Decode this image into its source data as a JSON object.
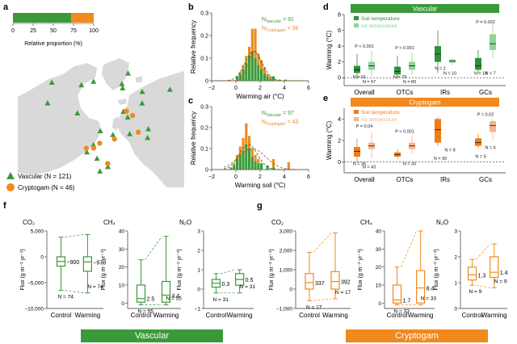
{
  "colors": {
    "vascular": "#3a9a3a",
    "vascular_light": "#8fd08f",
    "cryptogam": "#f08a1c",
    "cryptogam_light": "#f6b98a",
    "soil_vasc": "#2f8f3a",
    "air_vasc": "#8fd396",
    "soil_cryp": "#ef7d16",
    "air_cryp": "#f2b48d"
  },
  "panel_labels": {
    "a": "a",
    "b": "b",
    "c": "c",
    "d": "d",
    "e": "e",
    "f": "f",
    "g": "g"
  },
  "chart_data": [
    {
      "id": "a",
      "type": "bar",
      "title": "",
      "xlabel": "Relative proportion (%)",
      "ticks": [
        "0",
        "25",
        "50",
        "75",
        "100"
      ],
      "xlim": [
        0,
        100
      ],
      "segments": [
        {
          "name": "Vascular",
          "value": 72
        },
        {
          "name": "Cryptogam",
          "value": 28
        }
      ],
      "legend": [
        {
          "name": "Vascular",
          "label": "Vascular (N = 121)",
          "marker": "triangle"
        },
        {
          "name": "Cryptogam",
          "label": "Cryptogam (N = 46)",
          "marker": "circle"
        }
      ],
      "map_sites": [
        {
          "type": "v",
          "lon": -150,
          "lat": 68
        },
        {
          "type": "v",
          "lon": -145,
          "lat": 70
        },
        {
          "type": "v",
          "lon": -120,
          "lat": 62
        },
        {
          "type": "v",
          "lon": -105,
          "lat": 65
        },
        {
          "type": "v",
          "lon": -95,
          "lat": 78
        },
        {
          "type": "v",
          "lon": -80,
          "lat": 75
        },
        {
          "type": "v",
          "lon": -70,
          "lat": 60
        },
        {
          "type": "v",
          "lon": -60,
          "lat": 58
        },
        {
          "type": "v",
          "lon": -50,
          "lat": 69
        },
        {
          "type": "v",
          "lon": -20,
          "lat": 75
        },
        {
          "type": "v",
          "lon": 15,
          "lat": 78
        },
        {
          "type": "v",
          "lon": 20,
          "lat": 68
        },
        {
          "type": "v",
          "lon": 10,
          "lat": 60
        },
        {
          "type": "v",
          "lon": 5,
          "lat": 52
        },
        {
          "type": "v",
          "lon": -3,
          "lat": 55
        },
        {
          "type": "v",
          "lon": 25,
          "lat": 62
        },
        {
          "type": "v",
          "lon": 90,
          "lat": 72
        },
        {
          "type": "v",
          "lon": 140,
          "lat": 66
        },
        {
          "type": "v",
          "lon": 160,
          "lat": 68
        },
        {
          "type": "v",
          "lon": 100,
          "lat": 52
        },
        {
          "type": "v",
          "lon": 120,
          "lat": 50
        },
        {
          "type": "v",
          "lon": -110,
          "lat": 45
        },
        {
          "type": "v",
          "lon": -150,
          "lat": 60
        },
        {
          "type": "c",
          "lon": -95,
          "lat": 76
        },
        {
          "type": "c",
          "lon": -85,
          "lat": 72
        },
        {
          "type": "c",
          "lon": -20,
          "lat": 72
        },
        {
          "type": "c",
          "lon": 18,
          "lat": 66
        },
        {
          "type": "c",
          "lon": 10,
          "lat": 70
        },
        {
          "type": "c",
          "lon": -3,
          "lat": 57
        },
        {
          "type": "c",
          "lon": 28,
          "lat": 64
        },
        {
          "type": "c",
          "lon": -60,
          "lat": 65
        }
      ]
    },
    {
      "id": "b",
      "type": "histogram",
      "xlabel": "Warming air (°C)",
      "ylabel": "Relative frequency",
      "xlim": [
        -2,
        6
      ],
      "ylim": [
        0,
        0.3
      ],
      "xticks": [
        -2,
        0,
        2,
        4,
        6
      ],
      "yticks": [
        0,
        0.1,
        0.2,
        0.3
      ],
      "bin_width": 0.25,
      "bin_starts": [
        0,
        0.25,
        0.5,
        0.75,
        1.0,
        1.25,
        1.5,
        1.75,
        2.0,
        2.25,
        2.5,
        2.75,
        3.0,
        3.5,
        4.0
      ],
      "series": [
        {
          "name": "Vascular",
          "values": [
            0.02,
            0.03,
            0.05,
            0.08,
            0.11,
            0.13,
            0.1,
            0.07,
            0.05,
            0.03,
            0.02,
            0.01,
            0.02,
            0.005,
            0.005
          ]
        },
        {
          "name": "Cryptogam",
          "values": [
            0.0,
            0.01,
            0.02,
            0.03,
            0.04,
            0.1,
            0.13,
            0.05,
            0.04,
            0.03,
            0.01,
            0.01,
            0.0,
            0.0,
            0.0
          ]
        }
      ],
      "n_labels": [
        {
          "main": "N",
          "sub": "Vascular",
          "value": " = 91"
        },
        {
          "main": "N",
          "sub": "Cryptogam",
          "value": " = 36"
        }
      ]
    },
    {
      "id": "c",
      "type": "histogram",
      "xlabel": "Warming soil (°C)",
      "ylabel": "Relative frequency",
      "xlim": [
        -2,
        6
      ],
      "ylim": [
        0,
        0.3
      ],
      "xticks": [
        -2,
        0,
        2,
        4,
        6
      ],
      "yticks": [
        0,
        0.1,
        0.2,
        0.3
      ],
      "bin_width": 0.25,
      "bin_starts": [
        -0.5,
        -0.25,
        0,
        0.25,
        0.5,
        0.75,
        1.0,
        1.25,
        1.5,
        1.75,
        2.0,
        2.5,
        3.0,
        4.25
      ],
      "series": [
        {
          "name": "Vascular",
          "values": [
            0.01,
            0.02,
            0.05,
            0.07,
            0.09,
            0.12,
            0.1,
            0.06,
            0.04,
            0.03,
            0.03,
            0.02,
            0.01,
            0.005
          ]
        },
        {
          "name": "Cryptogam",
          "values": [
            0.0,
            0.01,
            0.02,
            0.04,
            0.06,
            0.1,
            0.06,
            0.04,
            0.03,
            0.02,
            0.0,
            0.0,
            0.04,
            0.03
          ]
        }
      ],
      "n_labels": [
        {
          "main": "N",
          "sub": "Vascular",
          "value": " = 97"
        },
        {
          "main": "N",
          "sub": "Cryptogam",
          "value": " = 43"
        }
      ]
    },
    {
      "id": "d",
      "type": "box",
      "title": "Vascular",
      "ylabel": "Warming (°C)",
      "ylim": [
        -1,
        8
      ],
      "yticks": [
        0,
        2,
        4,
        6,
        8
      ],
      "categories": [
        "Overall",
        "OTCs",
        "IRs",
        "GCs"
      ],
      "legend": [
        "Soil temperature",
        "Air temperature"
      ],
      "boxes": [
        {
          "cat": 0,
          "series": "soil",
          "min": -0.2,
          "q1": 0.6,
          "med": 1.0,
          "q3": 1.5,
          "max": 3.0
        },
        {
          "cat": 0,
          "series": "air",
          "min": 0.2,
          "q1": 1.0,
          "med": 1.5,
          "q3": 2.0,
          "max": 3.4
        },
        {
          "cat": 1,
          "series": "soil",
          "min": -0.2,
          "q1": 0.4,
          "med": 0.8,
          "q3": 1.4,
          "max": 2.8
        },
        {
          "cat": 1,
          "series": "air",
          "min": 0.4,
          "q1": 1.0,
          "med": 1.5,
          "q3": 2.0,
          "max": 3.2
        },
        {
          "cat": 2,
          "series": "soil",
          "min": 0.6,
          "q1": 2.0,
          "med": 3.0,
          "q3": 4.0,
          "max": 6.0
        },
        {
          "cat": 2,
          "series": "air",
          "min": 1.6,
          "q1": 1.9,
          "med": 2.1,
          "q3": 2.3,
          "max": 2.5
        },
        {
          "cat": 3,
          "series": "soil",
          "min": 0.5,
          "q1": 1.0,
          "med": 1.5,
          "q3": 2.5,
          "max": 3.5
        },
        {
          "cat": 3,
          "series": "air",
          "min": 2.5,
          "q1": 3.5,
          "med": 4.3,
          "q3": 5.5,
          "max": 6.8
        }
      ],
      "annotations": [
        {
          "text": "P < 0.001",
          "cat": 0,
          "y": 3.8
        },
        {
          "text": "P < 0.001",
          "cat": 1,
          "y": 3.6
        },
        {
          "text": "P = 0.002",
          "cat": 3,
          "y": 6.9
        },
        {
          "text": "N = 97",
          "cat": 0,
          "y": -0.7
        },
        {
          "text": "N = 91",
          "cat": 0,
          "y": -0.1
        },
        {
          "text": "N = 80",
          "cat": 1,
          "y": -0.7
        },
        {
          "text": "N = 79",
          "cat": 1,
          "y": -0.1
        },
        {
          "text": "N = 10",
          "cat": 2,
          "y": 0.4
        },
        {
          "text": "N = 2",
          "cat": 2,
          "y": 1.0
        },
        {
          "text": "N = 7",
          "cat": 3,
          "y": 0.4
        },
        {
          "text": "N = 10",
          "cat": 3,
          "y": 0.4
        }
      ]
    },
    {
      "id": "e",
      "type": "box",
      "title": "Cryptogam",
      "ylabel": "Warming (°C)",
      "ylim": [
        -1,
        5
      ],
      "yticks": [
        0,
        2,
        4
      ],
      "categories": [
        "Overall",
        "OTCs",
        "IRs",
        "GCs"
      ],
      "legend": [
        "Soil temperature",
        "Air temperature"
      ],
      "boxes": [
        {
          "cat": 0,
          "series": "soil",
          "min": 0.0,
          "q1": 0.5,
          "med": 1.0,
          "q3": 1.4,
          "max": 2.2
        },
        {
          "cat": 0,
          "series": "air",
          "min": 0.3,
          "q1": 1.2,
          "med": 1.5,
          "q3": 1.8,
          "max": 2.8
        },
        {
          "cat": 1,
          "series": "soil",
          "min": 0.3,
          "q1": 0.5,
          "med": 0.7,
          "q3": 0.9,
          "max": 1.2
        },
        {
          "cat": 1,
          "series": "air",
          "min": 0.8,
          "q1": 1.2,
          "med": 1.5,
          "q3": 1.8,
          "max": 2.5
        },
        {
          "cat": 2,
          "series": "soil",
          "min": 1.5,
          "q1": 1.8,
          "med": 3.0,
          "q3": 4.0,
          "max": 4.2
        },
        {
          "cat": 3,
          "series": "soil",
          "min": 1.3,
          "q1": 1.5,
          "med": 1.8,
          "q3": 2.2,
          "max": 2.6
        },
        {
          "cat": 3,
          "series": "air",
          "min": 2.0,
          "q1": 2.8,
          "med": 3.4,
          "q3": 3.8,
          "max": 4.0
        }
      ],
      "annotations": [
        {
          "text": "P = 0.04",
          "cat": 0,
          "y": 3.2
        },
        {
          "text": "P < 0.001",
          "cat": 1,
          "y": 2.7
        },
        {
          "text": "P = 0.02",
          "cat": 3,
          "y": 4.3
        },
        {
          "text": "N = 43",
          "cat": 0,
          "y": -0.6
        },
        {
          "text": "N = 36",
          "cat": 0,
          "y": -0.3
        },
        {
          "text": "N = 30",
          "cat": 1,
          "y": -0.3
        },
        {
          "text": "N = 30",
          "cat": 2,
          "y": 0.2
        },
        {
          "text": "N = 8",
          "cat": 2,
          "y": 1.0
        },
        {
          "text": "N = 5",
          "cat": 3,
          "y": 0.4
        },
        {
          "text": "N = 6",
          "cat": 3,
          "y": 1.2
        }
      ]
    },
    {
      "id": "f_co2",
      "group": "f",
      "type": "box",
      "title": "CO₂",
      "ylabel": "Flux (g m⁻² yr⁻¹)",
      "ylim": [
        -10000,
        5000
      ],
      "yticks": [
        5000,
        0,
        -5000,
        -10000
      ],
      "ytick_labels": [
        "5,000",
        "0",
        "−5,000",
        "−10,000"
      ],
      "categories": [
        "Control",
        "Warming"
      ],
      "boxes": [
        {
          "cat": 0,
          "min": -6500,
          "q1": -1800,
          "med": -900,
          "q3": 0,
          "max": 3800
        },
        {
          "cat": 1,
          "min": -7000,
          "q1": -2800,
          "med": -978,
          "q3": 0,
          "max": 4300
        }
      ],
      "median_labels": [
        "−900",
        "−978"
      ],
      "n_labels": [
        "N = 74",
        "N = 74"
      ]
    },
    {
      "id": "f_ch4",
      "group": "f",
      "type": "box",
      "title": "CH₄",
      "ylabel": "Flux (g m⁻² yr⁻¹)",
      "ylim": [
        -3,
        40
      ],
      "yticks": [
        0,
        10,
        20,
        30,
        40
      ],
      "ytick_labels": [
        "0",
        "10",
        "20",
        "30",
        "40"
      ],
      "categories": [
        "Control",
        "Warming"
      ],
      "boxes": [
        {
          "cat": 0,
          "min": -1,
          "q1": 0.5,
          "med": 2.5,
          "q3": 10,
          "max": 24
        },
        {
          "cat": 1,
          "min": -1,
          "q1": 0.5,
          "med": 4.4,
          "q3": 12,
          "max": 37
        }
      ],
      "median_labels": [
        "2.5",
        "4.4"
      ],
      "n_labels": [
        "N = 55",
        "N = 55"
      ]
    },
    {
      "id": "f_n2o",
      "group": "f",
      "type": "box",
      "title": "N₂O",
      "ylabel": "Flux (g m⁻² yr⁻¹)",
      "ylim": [
        -1,
        3
      ],
      "yticks": [
        -1,
        0,
        1,
        2,
        3
      ],
      "ytick_labels": [
        "−1",
        "0",
        "1",
        "2",
        "3"
      ],
      "categories": [
        "Control",
        "Warming"
      ],
      "boxes": [
        {
          "cat": 0,
          "min": -0.2,
          "q1": 0.1,
          "med": 0.3,
          "q3": 0.5,
          "max": 0.8
        },
        {
          "cat": 1,
          "min": -0.2,
          "q1": 0.2,
          "med": 0.5,
          "q3": 0.8,
          "max": 1.0
        }
      ],
      "median_labels": [
        "0.3",
        "0.5"
      ],
      "n_labels": [
        "N = 31",
        "N = 31"
      ]
    },
    {
      "id": "g_co2",
      "group": "g",
      "type": "box",
      "title": "CO₂",
      "ylabel": "Flux (g m⁻² yr⁻¹)",
      "ylim": [
        -1000,
        3000
      ],
      "yticks": [
        3000,
        2000,
        1000,
        0,
        -1000
      ],
      "ytick_labels": [
        "3,000",
        "2,000",
        "1,000",
        "0",
        "−1,000"
      ],
      "categories": [
        "Control",
        "Warming"
      ],
      "boxes": [
        {
          "cat": 0,
          "min": -600,
          "q1": 0,
          "med": 337,
          "q3": 800,
          "max": 1900
        },
        {
          "cat": 1,
          "min": -500,
          "q1": 0,
          "med": 392,
          "q3": 900,
          "max": 2900
        }
      ],
      "median_labels": [
        "337",
        "392"
      ],
      "n_labels": [
        "N = 17",
        "N = 17"
      ]
    },
    {
      "id": "g_ch4",
      "group": "g",
      "type": "box",
      "title": "CH₄",
      "ylabel": "Flux (g m⁻² yr⁻¹)",
      "ylim": [
        -3,
        40
      ],
      "yticks": [
        0,
        10,
        20,
        30,
        40
      ],
      "ytick_labels": [
        "0",
        "10",
        "20",
        "30",
        "40"
      ],
      "categories": [
        "Control",
        "Warming"
      ],
      "boxes": [
        {
          "cat": 0,
          "min": -1,
          "q1": 0,
          "med": 1.7,
          "q3": 10,
          "max": 20
        },
        {
          "cat": 1,
          "min": -1,
          "q1": 0,
          "med": 8.4,
          "q3": 18,
          "max": 40
        }
      ],
      "median_labels": [
        "1.7",
        "8.4"
      ],
      "n_labels": [
        "N = 33",
        "N = 33"
      ]
    },
    {
      "id": "g_n2o",
      "group": "g",
      "type": "box",
      "title": "N₂O",
      "ylabel": "Flux (g m⁻² yr⁻¹)",
      "ylim": [
        0,
        3
      ],
      "yticks": [
        0,
        1,
        2,
        3
      ],
      "ytick_labels": [
        "0",
        "1",
        "2",
        "3"
      ],
      "categories": [
        "Control",
        "Warming"
      ],
      "boxes": [
        {
          "cat": 0,
          "min": 0.9,
          "q1": 1.1,
          "med": 1.3,
          "q3": 1.6,
          "max": 1.9
        },
        {
          "cat": 1,
          "min": 0.8,
          "q1": 1.2,
          "med": 1.4,
          "q3": 2.0,
          "max": 2.5
        }
      ],
      "median_labels": [
        "1.3",
        "1.4"
      ],
      "n_labels": [
        "N = 9",
        "N = 9"
      ]
    }
  ],
  "banners": {
    "vascular": "Vascular",
    "cryptogam": "Cryptogam"
  }
}
